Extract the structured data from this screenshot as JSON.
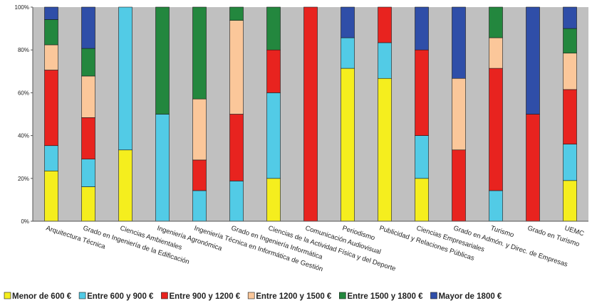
{
  "chart_data": {
    "type": "bar",
    "stacked": true,
    "percent": true,
    "title": "",
    "xlabel": "",
    "ylabel": "",
    "ylim": [
      0,
      100
    ],
    "yticks": [
      "0%",
      "20%",
      "40%",
      "60%",
      "80%",
      "100%"
    ],
    "grid": false,
    "legend_position": "bottom",
    "categories": [
      "Arquitectura Técnica",
      "Grado en Ingeniería de la Edificación",
      "Ciencias Ambientales",
      "Ingeniería Agronómica",
      "Ingeniería Técnica en Informática de Gestión",
      "Grado en Ingeniería Informática",
      "Ciencias de la Actividad Física y del Deporte",
      "Comunicación Audiovisual",
      "Periodismo",
      "Publicidad y Relaciones Públicas",
      "Ciencias Empresariales",
      "Grado en Admón. y Direc. de Empresas",
      "Turismo",
      "Grado en Turismo",
      "UEMC"
    ],
    "series": [
      {
        "name": "Menor de 600 €",
        "color": "#f5ee1e",
        "values": [
          23.5,
          16.1,
          33.3,
          0,
          0,
          0,
          20,
          0,
          71.4,
          66.7,
          20,
          0,
          0,
          0,
          19
        ]
      },
      {
        "name": "Entre 600 y 900 €",
        "color": "#52cbe6",
        "values": [
          11.8,
          12.9,
          66.7,
          50,
          14.3,
          18.8,
          40,
          0,
          14.3,
          16.7,
          20,
          0,
          14.3,
          0,
          17
        ]
      },
      {
        "name": "Entre 900 y 1200 €",
        "color": "#e8231f",
        "values": [
          35.3,
          19.4,
          0,
          0,
          14.3,
          31.2,
          20,
          100,
          0,
          16.6,
          40,
          33.3,
          57.1,
          50,
          25.5
        ]
      },
      {
        "name": "Entre 1200 y 1500 €",
        "color": "#fbc79a",
        "values": [
          11.8,
          19.4,
          0,
          0,
          28.5,
          43.8,
          0,
          0,
          0,
          0,
          0,
          33.4,
          14.3,
          0,
          17
        ]
      },
      {
        "name": "Entre 1500 y 1800 €",
        "color": "#23873e",
        "values": [
          11.8,
          12.9,
          0,
          50,
          42.9,
          6.2,
          20,
          0,
          0,
          0,
          0,
          0,
          14.3,
          0,
          11.5
        ]
      },
      {
        "name": "Mayor de 1800 €",
        "color": "#2f4ea8",
        "values": [
          5.8,
          19.3,
          0,
          0,
          0,
          0,
          0,
          0,
          14.3,
          0,
          20,
          33.3,
          0,
          50,
          10
        ]
      }
    ],
    "plot_background": "#c0c0c0"
  }
}
